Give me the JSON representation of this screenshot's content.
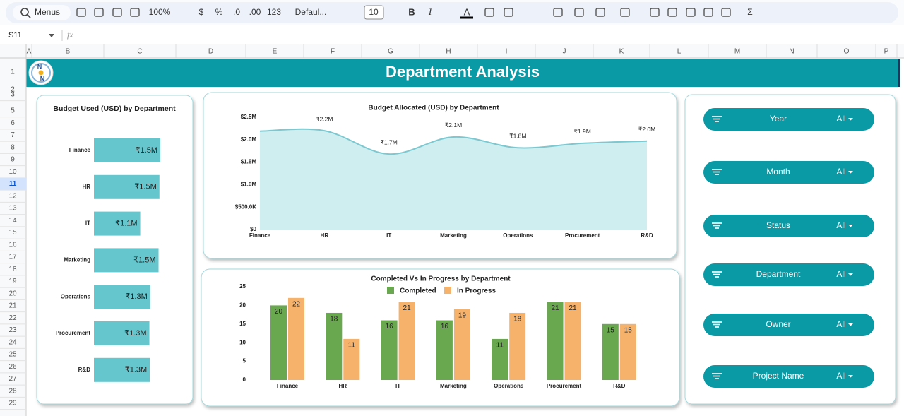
{
  "toolbar": {
    "search": "Menus",
    "zoom": "100%",
    "currency": "$",
    "percent": "%",
    "decrease_decimals": ".0",
    "increase_decimals": ".00",
    "number_format": "123",
    "font": "Defaul...",
    "font_size": "10",
    "bold": "B",
    "italic": "I",
    "text_color": "A",
    "sum": "Σ"
  },
  "formula_bar": {
    "cell": "S11",
    "fx": "fx"
  },
  "columns": [
    "A",
    "B",
    "C",
    "D",
    "E",
    "F",
    "G",
    "H",
    "I",
    "J",
    "K",
    "L",
    "M",
    "N",
    "O",
    "P"
  ],
  "rows": [
    "1",
    "2",
    "3",
    "5",
    "6",
    "7",
    "8",
    "9",
    "10",
    "11",
    "12",
    "13",
    "14",
    "15",
    "16",
    "17",
    "18",
    "19",
    "20",
    "21",
    "22",
    "23",
    "24",
    "25",
    "26",
    "27",
    "28",
    "29"
  ],
  "header": {
    "title": "Department Analysis",
    "logo": [
      "N",
      "N"
    ]
  },
  "chart_data": [
    {
      "type": "hbar",
      "title": "Budget Used (USD) by Department",
      "color": "#66c6cd",
      "categories": [
        "Finance",
        "HR",
        "IT",
        "Marketing",
        "Operations",
        "Procurement",
        "R&D"
      ],
      "values": [
        1520000,
        1500000,
        1060000,
        1480000,
        1290000,
        1270000,
        1280000
      ],
      "value_labels": [
        "₹1.5M",
        "₹1.5M",
        "₹1.1M",
        "₹1.5M",
        "₹1.3M",
        "₹1.3M",
        "₹1.3M"
      ]
    },
    {
      "type": "area",
      "title": "Budget Allocated (USD) by Department",
      "color": "#7cc8d1",
      "fill": "#cfeeef",
      "categories": [
        "Finance",
        "HR",
        "IT",
        "Marketing",
        "Operations",
        "Procurement",
        "R&D"
      ],
      "values": [
        2190000,
        2200000,
        1680000,
        2060000,
        1820000,
        1920000,
        1970000
      ],
      "value_labels": [
        null,
        "₹2.2M",
        "₹1.7M",
        "₹2.1M",
        "₹1.8M",
        "₹1.9M",
        "₹2.0M"
      ],
      "ylim": [
        0,
        2500000
      ],
      "yticks": [
        {
          "value": 0,
          "label": "$0"
        },
        {
          "value": 500000,
          "label": "$500.0K"
        },
        {
          "value": 1000000,
          "label": "$1.0M"
        },
        {
          "value": 1500000,
          "label": "$1.5M"
        },
        {
          "value": 2000000,
          "label": "$2.0M"
        },
        {
          "value": 2500000,
          "label": "$2.5M"
        }
      ]
    },
    {
      "type": "grouped_bar",
      "title": "Completed Vs In Progress by Department",
      "categories": [
        "Finance",
        "HR",
        "IT",
        "Marketing",
        "Operations",
        "Procurement",
        "R&D"
      ],
      "series": [
        {
          "name": "Completed",
          "color": "#6aa84f",
          "values": [
            20,
            18,
            16,
            16,
            11,
            21,
            15
          ]
        },
        {
          "name": "In Progress",
          "color": "#f6b26b",
          "values": [
            22,
            11,
            21,
            19,
            18,
            21,
            15
          ]
        }
      ],
      "ylim": [
        0,
        25
      ],
      "yticks": [
        0,
        5,
        10,
        15,
        20,
        25
      ],
      "legend": "top"
    }
  ],
  "slicers": [
    {
      "label": "Year",
      "value": "All"
    },
    {
      "label": "Month",
      "value": "All"
    },
    {
      "label": "Status",
      "value": "All"
    },
    {
      "label": "Department",
      "value": "All"
    },
    {
      "label": "Owner",
      "value": "All"
    },
    {
      "label": "Project Name",
      "value": "All"
    }
  ]
}
